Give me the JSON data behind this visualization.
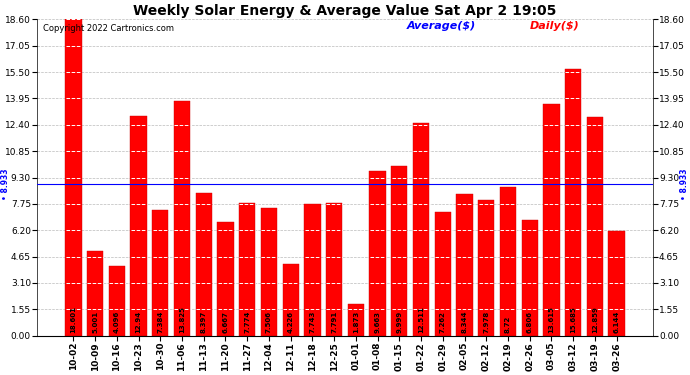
{
  "title": "Weekly Solar Energy & Average Value Sat Apr 2 19:05",
  "copyright": "Copyright 2022 Cartronics.com",
  "legend_average": "Average($)",
  "legend_daily": "Daily($)",
  "average_value": 8.933,
  "categories": [
    "10-02",
    "10-09",
    "10-16",
    "10-23",
    "10-30",
    "11-06",
    "11-13",
    "11-20",
    "11-27",
    "12-04",
    "12-11",
    "12-18",
    "12-25",
    "01-01",
    "01-08",
    "01-15",
    "01-22",
    "01-29",
    "02-05",
    "02-12",
    "02-19",
    "02-26",
    "03-05",
    "03-12",
    "03-19",
    "03-26"
  ],
  "values": [
    18.601,
    5.001,
    4.096,
    12.94,
    7.384,
    13.825,
    8.397,
    6.667,
    7.774,
    7.506,
    4.226,
    7.743,
    7.791,
    1.873,
    9.663,
    9.999,
    12.511,
    7.262,
    8.344,
    7.978,
    8.72,
    6.806,
    13.615,
    15.685,
    12.859,
    6.144
  ],
  "bar_color": "#ff0000",
  "bar_edge_color": "#cc0000",
  "average_line_color": "#0000ff",
  "dashed_line_color": "#ffffff",
  "background_color": "#ffffff",
  "plot_bg_color": "#ffffff",
  "grid_color": "#bbbbbb",
  "ylim": [
    0.0,
    18.6
  ],
  "yticks": [
    0.0,
    1.55,
    3.1,
    4.65,
    6.2,
    7.75,
    9.3,
    10.85,
    12.4,
    13.95,
    15.5,
    17.05,
    18.6
  ],
  "title_fontsize": 10,
  "tick_fontsize": 6.5,
  "value_fontsize": 5.0,
  "legend_fontsize": 8,
  "copyright_fontsize": 6
}
